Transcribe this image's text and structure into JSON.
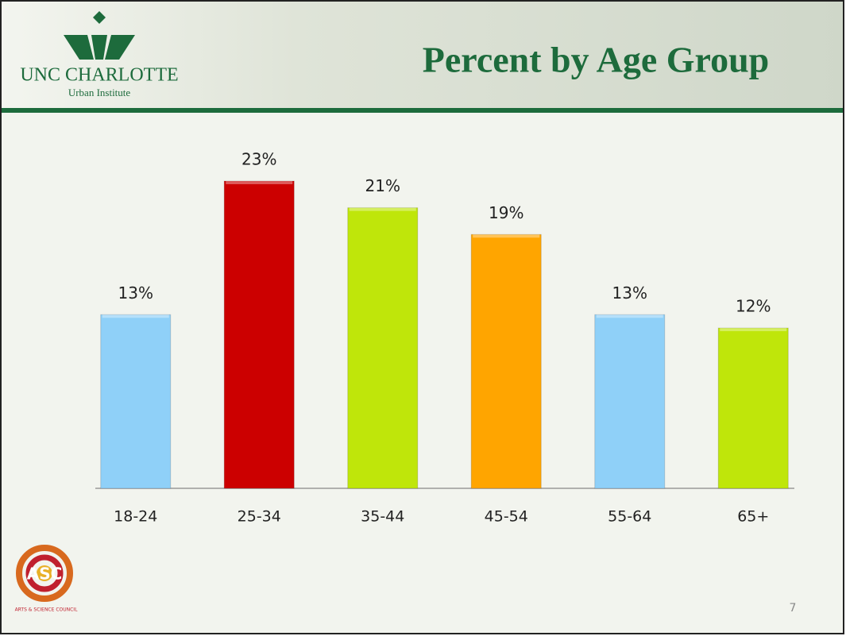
{
  "header": {
    "org": "UNC CHARLOTTE",
    "unit": "Urban Institute"
  },
  "chart_data": {
    "type": "bar",
    "title": "Percent by Age Group",
    "categories": [
      "18-24",
      "25-34",
      "35-44",
      "45-54",
      "55-64",
      "65+"
    ],
    "values": [
      13,
      23,
      21,
      19,
      13,
      12
    ],
    "value_labels": [
      "13%",
      "23%",
      "21%",
      "19%",
      "13%",
      "12%"
    ],
    "colors": [
      "#8fd0f8",
      "#cc0000",
      "#bfe60a",
      "#ffa500",
      "#8fd0f8",
      "#bfe60a"
    ]
  },
  "footer": {
    "logo": "ASC",
    "logo_caption": "ARTS & SCIENCE COUNCIL",
    "page_number": 7
  }
}
